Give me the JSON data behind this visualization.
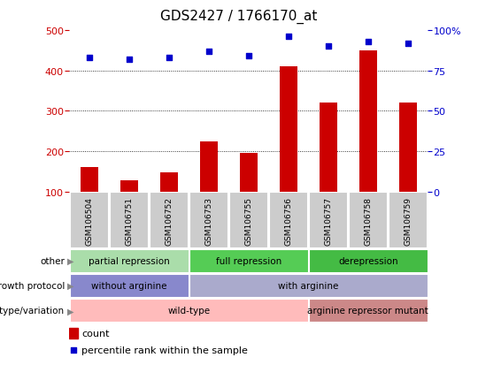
{
  "title": "GDS2427 / 1766170_at",
  "samples": [
    "GSM106504",
    "GSM106751",
    "GSM106752",
    "GSM106753",
    "GSM106755",
    "GSM106756",
    "GSM106757",
    "GSM106758",
    "GSM106759"
  ],
  "counts": [
    160,
    128,
    148,
    225,
    196,
    410,
    320,
    450,
    320
  ],
  "percentile_ranks": [
    83,
    82,
    83,
    87,
    84,
    96,
    90,
    93,
    92
  ],
  "ylim_left": [
    100,
    500
  ],
  "ylim_right": [
    0,
    100
  ],
  "left_ticks": [
    100,
    200,
    300,
    400,
    500
  ],
  "right_ticks": [
    0,
    25,
    50,
    75,
    100
  ],
  "bar_color": "#cc0000",
  "dot_color": "#0000cc",
  "bar_bottom": 100,
  "annotations": {
    "other": {
      "label": "other",
      "groups": [
        {
          "text": "partial repression",
          "start": 0,
          "end": 3,
          "color": "#aaddaa"
        },
        {
          "text": "full repression",
          "start": 3,
          "end": 6,
          "color": "#55cc55"
        },
        {
          "text": "derepression",
          "start": 6,
          "end": 9,
          "color": "#44bb44"
        }
      ]
    },
    "growth_protocol": {
      "label": "growth protocol",
      "groups": [
        {
          "text": "without arginine",
          "start": 0,
          "end": 3,
          "color": "#8888cc"
        },
        {
          "text": "with arginine",
          "start": 3,
          "end": 9,
          "color": "#aaaacc"
        }
      ]
    },
    "genotype": {
      "label": "genotype/variation",
      "groups": [
        {
          "text": "wild-type",
          "start": 0,
          "end": 6,
          "color": "#ffbbbb"
        },
        {
          "text": "arginine repressor mutant",
          "start": 6,
          "end": 9,
          "color": "#cc8888"
        }
      ]
    }
  },
  "legend": [
    {
      "color": "#cc0000",
      "label": "count"
    },
    {
      "color": "#0000cc",
      "label": "percentile rank within the sample"
    }
  ],
  "tick_label_color_left": "#cc0000",
  "tick_label_color_right": "#0000cc",
  "bg_color": "#ffffff",
  "xticklabels_bg": "#cccccc"
}
